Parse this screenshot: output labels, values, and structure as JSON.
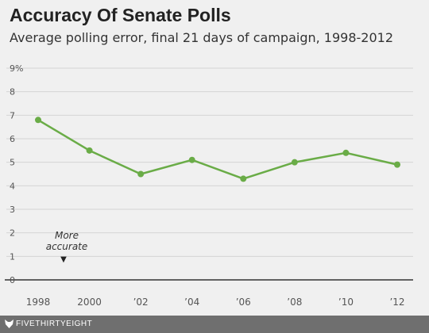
{
  "title": "Accuracy Of Senate Polls",
  "subtitle": "Average polling error, final 21 days of campaign, 1998-2012",
  "annotation": {
    "line1": "More",
    "line2": "accurate",
    "arrow": "▼"
  },
  "footer": {
    "brand": "FIVETHIRTYEIGHT",
    "icon": "fox-icon",
    "background": "#6f6f6f"
  },
  "chart_data": {
    "type": "line",
    "title": "Accuracy Of Senate Polls",
    "subtitle": "Average polling error, final 21 days of campaign, 1998-2012",
    "x": [
      1998,
      2000,
      2002,
      2004,
      2006,
      2008,
      2010,
      2012
    ],
    "x_tick_labels": [
      "1998",
      "2000",
      "’02",
      "’04",
      "’06",
      "’08",
      "’10",
      "’12"
    ],
    "series": [
      {
        "values": [
          6.8,
          5.5,
          4.5,
          5.1,
          4.3,
          5.0,
          5.4,
          4.9
        ],
        "color": "#6aac47"
      }
    ],
    "y_tick_labels": [
      "0",
      "1",
      "2",
      "3",
      "4",
      "5",
      "6",
      "7",
      "8",
      "9%"
    ],
    "ylim": [
      0,
      9
    ],
    "grid": true,
    "xlabel": "",
    "ylabel": ""
  }
}
